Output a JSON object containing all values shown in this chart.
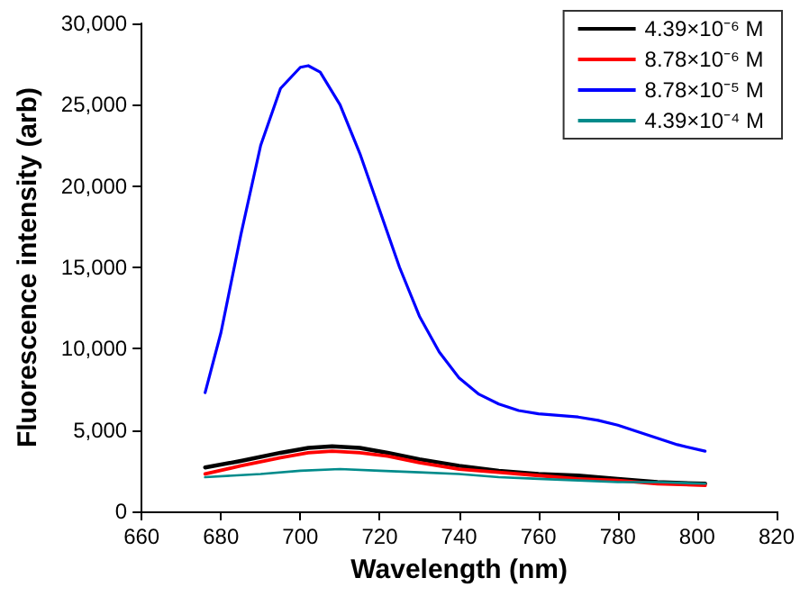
{
  "chart_data": {
    "type": "line",
    "xlabel": "Wavelength (nm)",
    "ylabel": "Fluorescence intensity (arb)",
    "xlim": [
      660,
      820
    ],
    "xticks": [
      660,
      680,
      700,
      720,
      740,
      760,
      780,
      800,
      820
    ],
    "ylim": [
      0,
      30000
    ],
    "yticks": [
      0,
      {
        "value": 5000,
        "label": "5,000"
      },
      {
        "value": 10000,
        "label": "10,000"
      },
      {
        "value": 15000,
        "label": "15,000"
      },
      {
        "value": 20000,
        "label": "20,000"
      },
      {
        "value": 25000,
        "label": "25,000"
      },
      {
        "value": 30000,
        "label": "30,000"
      }
    ],
    "grid": false,
    "legend": "top right",
    "marker": "none",
    "line_style": "solid",
    "series": [
      {
        "name": "4.39×10⁻⁶ M",
        "color": "#000000",
        "x": [
          676,
          685,
          695,
          702,
          708,
          715,
          722,
          730,
          740,
          750,
          760,
          770,
          780,
          790,
          802
        ],
        "values": [
          2700,
          3100,
          3600,
          3900,
          4000,
          3900,
          3600,
          3200,
          2800,
          2500,
          2300,
          2200,
          2000,
          1800,
          1700
        ]
      },
      {
        "name": "8.78×10⁻⁶ M",
        "color": "#ff0000",
        "x": [
          676,
          685,
          695,
          702,
          708,
          715,
          722,
          730,
          740,
          750,
          760,
          770,
          780,
          790,
          802
        ],
        "values": [
          2300,
          2800,
          3300,
          3600,
          3700,
          3600,
          3400,
          3000,
          2600,
          2400,
          2200,
          2000,
          1900,
          1700,
          1600
        ]
      },
      {
        "name": "8.78×10⁻⁵ M",
        "color": "#0000ff",
        "x": [
          676,
          680,
          685,
          690,
          695,
          700,
          702,
          705,
          710,
          715,
          720,
          725,
          730,
          735,
          740,
          745,
          750,
          755,
          760,
          765,
          770,
          775,
          780,
          785,
          790,
          795,
          802
        ],
        "values": [
          7300,
          11000,
          17000,
          22500,
          26000,
          27300,
          27400,
          27000,
          25000,
          22000,
          18500,
          15000,
          12000,
          9800,
          8200,
          7200,
          6600,
          6200,
          6000,
          5900,
          5800,
          5600,
          5300,
          4900,
          4500,
          4100,
          3700
        ]
      },
      {
        "name": "4.39×10⁻⁴ M",
        "color": "#008b8b",
        "x": [
          676,
          690,
          700,
          710,
          720,
          730,
          740,
          750,
          760,
          770,
          780,
          790,
          802
        ],
        "values": [
          2100,
          2300,
          2500,
          2600,
          2500,
          2400,
          2300,
          2100,
          2000,
          1900,
          1800,
          1800,
          1700
        ]
      }
    ]
  }
}
